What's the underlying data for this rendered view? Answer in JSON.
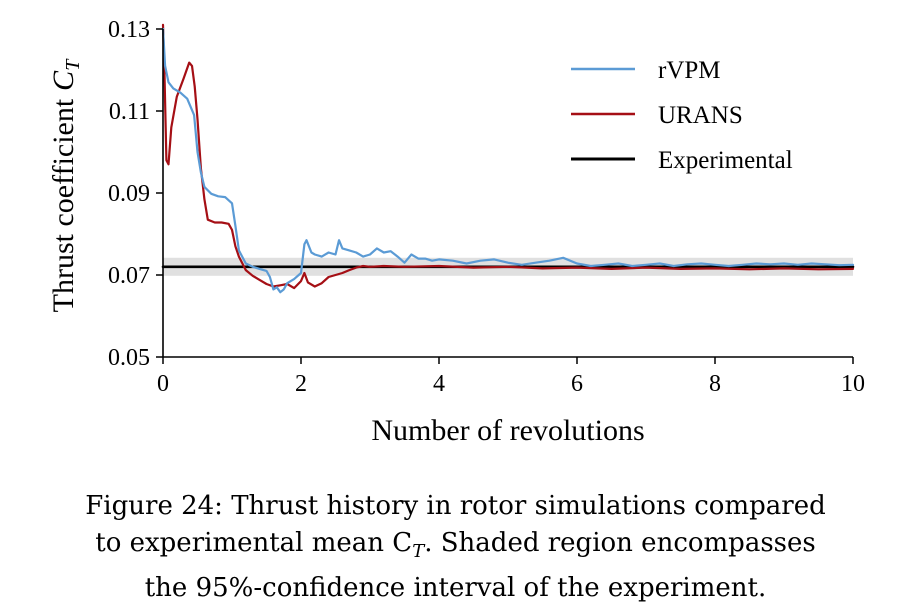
{
  "chart_data": {
    "type": "line",
    "xlabel": "Number of revolutions",
    "ylabel": "Thrust coefficient",
    "ylabel_symbol": "C",
    "ylabel_subscript": "T",
    "xlim": [
      0,
      10
    ],
    "ylim": [
      0.05,
      0.13
    ],
    "xticks": [
      "0",
      "2",
      "4",
      "6",
      "8",
      "10"
    ],
    "yticks": [
      "0.05",
      "0.07",
      "0.09",
      "0.11",
      "0.13"
    ],
    "grid": false,
    "legend_position": "top-right",
    "confidence_band": [
      0.0698,
      0.0742
    ],
    "series": [
      {
        "name": "rVPM",
        "color": "#5b9bd5",
        "x": [
          0,
          0.03,
          0.08,
          0.15,
          0.25,
          0.35,
          0.45,
          0.5,
          0.55,
          0.6,
          0.7,
          0.8,
          0.9,
          1.0,
          1.05,
          1.1,
          1.2,
          1.3,
          1.4,
          1.5,
          1.55,
          1.6,
          1.65,
          1.7,
          1.75,
          1.8,
          1.9,
          2.0,
          2.05,
          2.08,
          2.15,
          2.2,
          2.3,
          2.4,
          2.5,
          2.55,
          2.6,
          2.7,
          2.8,
          2.9,
          3.0,
          3.1,
          3.2,
          3.3,
          3.4,
          3.5,
          3.6,
          3.7,
          3.8,
          3.9,
          4.0,
          4.2,
          4.4,
          4.6,
          4.8,
          5.0,
          5.2,
          5.4,
          5.6,
          5.8,
          6.0,
          6.2,
          6.4,
          6.6,
          6.8,
          7.0,
          7.2,
          7.4,
          7.6,
          7.8,
          8.0,
          8.2,
          8.4,
          8.6,
          8.8,
          9.0,
          9.2,
          9.4,
          9.6,
          9.8,
          10.0
        ],
        "values": [
          0.13,
          0.121,
          0.117,
          0.1155,
          0.1145,
          0.113,
          0.109,
          0.1,
          0.095,
          0.0915,
          0.0898,
          0.0892,
          0.089,
          0.0875,
          0.082,
          0.076,
          0.0728,
          0.072,
          0.0715,
          0.071,
          0.0695,
          0.0665,
          0.067,
          0.0658,
          0.0665,
          0.068,
          0.069,
          0.0705,
          0.0775,
          0.0785,
          0.0755,
          0.075,
          0.0745,
          0.0755,
          0.075,
          0.0785,
          0.0765,
          0.076,
          0.0755,
          0.0745,
          0.075,
          0.0765,
          0.0755,
          0.0758,
          0.0745,
          0.073,
          0.075,
          0.074,
          0.074,
          0.0735,
          0.0738,
          0.0735,
          0.0728,
          0.0735,
          0.0738,
          0.073,
          0.0725,
          0.073,
          0.0735,
          0.0742,
          0.0728,
          0.0722,
          0.0725,
          0.0728,
          0.0722,
          0.0725,
          0.0728,
          0.0722,
          0.0726,
          0.0728,
          0.0725,
          0.0722,
          0.0725,
          0.0728,
          0.0726,
          0.0728,
          0.0725,
          0.0728,
          0.0726,
          0.0724,
          0.0725
        ]
      },
      {
        "name": "URANS",
        "color": "#a50f15",
        "x": [
          0,
          0.02,
          0.05,
          0.08,
          0.12,
          0.2,
          0.3,
          0.38,
          0.42,
          0.46,
          0.5,
          0.55,
          0.6,
          0.65,
          0.75,
          0.85,
          0.95,
          1.0,
          1.05,
          1.1,
          1.2,
          1.3,
          1.4,
          1.5,
          1.6,
          1.7,
          1.8,
          1.9,
          2.0,
          2.05,
          2.1,
          2.2,
          2.3,
          2.4,
          2.5,
          2.6,
          2.7,
          2.8,
          2.9,
          3.0,
          3.2,
          3.5,
          4.0,
          4.5,
          5.0,
          5.5,
          6.0,
          6.5,
          7.0,
          7.5,
          8.0,
          8.5,
          9.0,
          9.5,
          10.0
        ],
        "values": [
          0.131,
          0.12,
          0.098,
          0.097,
          0.106,
          0.1135,
          0.118,
          0.1218,
          0.121,
          0.116,
          0.108,
          0.096,
          0.0885,
          0.0835,
          0.0828,
          0.0828,
          0.0825,
          0.081,
          0.077,
          0.0745,
          0.0712,
          0.0698,
          0.0688,
          0.0678,
          0.0672,
          0.0675,
          0.0678,
          0.0668,
          0.0685,
          0.0705,
          0.0682,
          0.0672,
          0.068,
          0.0695,
          0.07,
          0.0705,
          0.0712,
          0.0718,
          0.0722,
          0.072,
          0.0722,
          0.072,
          0.0722,
          0.0718,
          0.072,
          0.0716,
          0.0718,
          0.0715,
          0.0718,
          0.0715,
          0.0716,
          0.0714,
          0.0716,
          0.0714,
          0.0715
        ]
      },
      {
        "name": "Experimental",
        "color": "#000000",
        "x": [
          0,
          10
        ],
        "values": [
          0.072,
          0.072
        ]
      }
    ]
  },
  "caption": {
    "lines": [
      "Figure 24: Thrust history in rotor simulations compared",
      "to experimental mean C",
      ". Shaded region encompasses",
      "the 95%-confidence interval of the experiment."
    ],
    "line2_subscript": "T"
  }
}
